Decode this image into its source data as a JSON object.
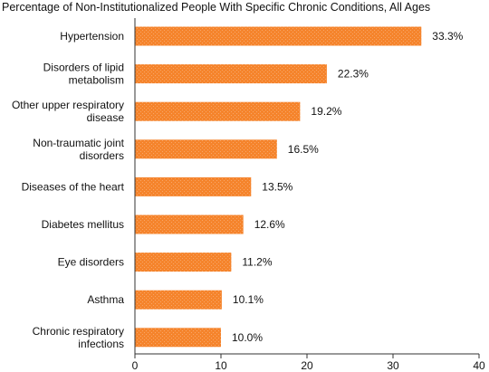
{
  "chart_data": {
    "type": "bar",
    "orientation": "horizontal",
    "title": "Percentage of Non-Institutionalized People With Specific Chronic Conditions, All Ages",
    "categories": [
      [
        "Hypertension"
      ],
      [
        "Disorders of lipid",
        "metabolism"
      ],
      [
        "Other upper respiratory",
        "disease"
      ],
      [
        "Non-traumatic joint",
        "disorders"
      ],
      [
        "Diseases of the heart"
      ],
      [
        "Diabetes mellitus"
      ],
      [
        "Eye disorders"
      ],
      [
        "Asthma"
      ],
      [
        "Chronic respiratory",
        "infections"
      ]
    ],
    "values": [
      33.3,
      22.3,
      19.2,
      16.5,
      13.5,
      12.6,
      11.2,
      10.1,
      10.0
    ],
    "value_labels": [
      "33.3%",
      "22.3%",
      "19.2%",
      "16.5%",
      "13.5%",
      "12.6%",
      "11.2%",
      "10.1%",
      "10.0%"
    ],
    "xlim": [
      0,
      40
    ],
    "xticks": [
      0,
      10,
      20,
      30,
      40
    ],
    "grid": false,
    "legend": "none",
    "bar_color": "#F5842C"
  }
}
